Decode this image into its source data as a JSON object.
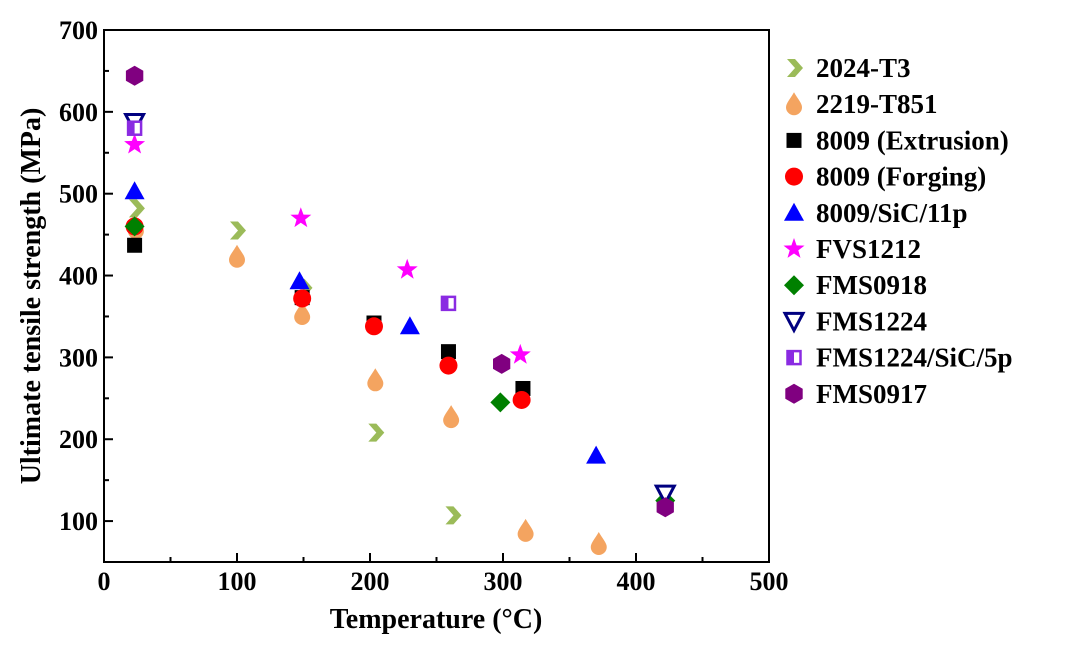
{
  "chart_data": {
    "type": "scatter",
    "xlabel": "Temperature (°C)",
    "ylabel": "Ultimate tensile strength (MPa)",
    "xlim": [
      0,
      500
    ],
    "ylim": [
      50,
      700
    ],
    "xticks": [
      0,
      100,
      200,
      300,
      400,
      500
    ],
    "yticks": [
      100,
      200,
      300,
      400,
      500,
      600,
      700
    ],
    "grid": false,
    "legend_position": "right",
    "series": [
      {
        "name": "2024-T3",
        "marker": "chevron",
        "color": "#9bbb59",
        "points": [
          [
            24,
            482
          ],
          [
            100,
            455
          ],
          [
            150,
            385
          ],
          [
            204,
            208
          ],
          [
            262,
            107
          ]
        ]
      },
      {
        "name": "2219-T851",
        "marker": "drop",
        "color": "#f4a460",
        "points": [
          [
            24,
            458
          ],
          [
            100,
            423
          ],
          [
            149,
            353
          ],
          [
            204,
            272
          ],
          [
            261,
            227
          ],
          [
            317,
            88
          ],
          [
            372,
            72
          ]
        ]
      },
      {
        "name": "8009 (Extrusion)",
        "marker": "square",
        "color": "#000000",
        "points": [
          [
            23,
            437
          ],
          [
            149,
            373
          ],
          [
            203,
            342
          ],
          [
            259,
            307
          ],
          [
            315,
            262
          ]
        ]
      },
      {
        "name": "8009 (Forging)",
        "marker": "circle",
        "color": "#ff0000",
        "points": [
          [
            23,
            460
          ],
          [
            149,
            372
          ],
          [
            203,
            338
          ],
          [
            259,
            290
          ],
          [
            314,
            248
          ]
        ]
      },
      {
        "name": "8009/SiC/11p",
        "marker": "triangle",
        "color": "#0000ff",
        "points": [
          [
            23,
            503
          ],
          [
            147,
            393
          ],
          [
            230,
            338
          ],
          [
            370,
            180
          ]
        ]
      },
      {
        "name": "FVS1212",
        "marker": "star",
        "color": "#ff00ff",
        "points": [
          [
            23,
            560
          ],
          [
            148,
            470
          ],
          [
            228,
            407
          ],
          [
            313,
            303
          ]
        ]
      },
      {
        "name": "FMS0918",
        "marker": "diamond",
        "color": "#008000",
        "points": [
          [
            23,
            460
          ],
          [
            298,
            245
          ],
          [
            422,
            125
          ]
        ]
      },
      {
        "name": "FMS1224",
        "marker": "triangle-down-open",
        "color": "#000080",
        "points": [
          [
            23,
            587
          ],
          [
            422,
            133
          ]
        ]
      },
      {
        "name": "FMS1224/SiC/5p",
        "marker": "square-half",
        "color": "#8a2be2",
        "points": [
          [
            23,
            580
          ],
          [
            259,
            366
          ]
        ]
      },
      {
        "name": "FMS0917",
        "marker": "hexagon",
        "color": "#800080",
        "points": [
          [
            23,
            644
          ],
          [
            299,
            292
          ],
          [
            422,
            117
          ]
        ]
      }
    ]
  }
}
